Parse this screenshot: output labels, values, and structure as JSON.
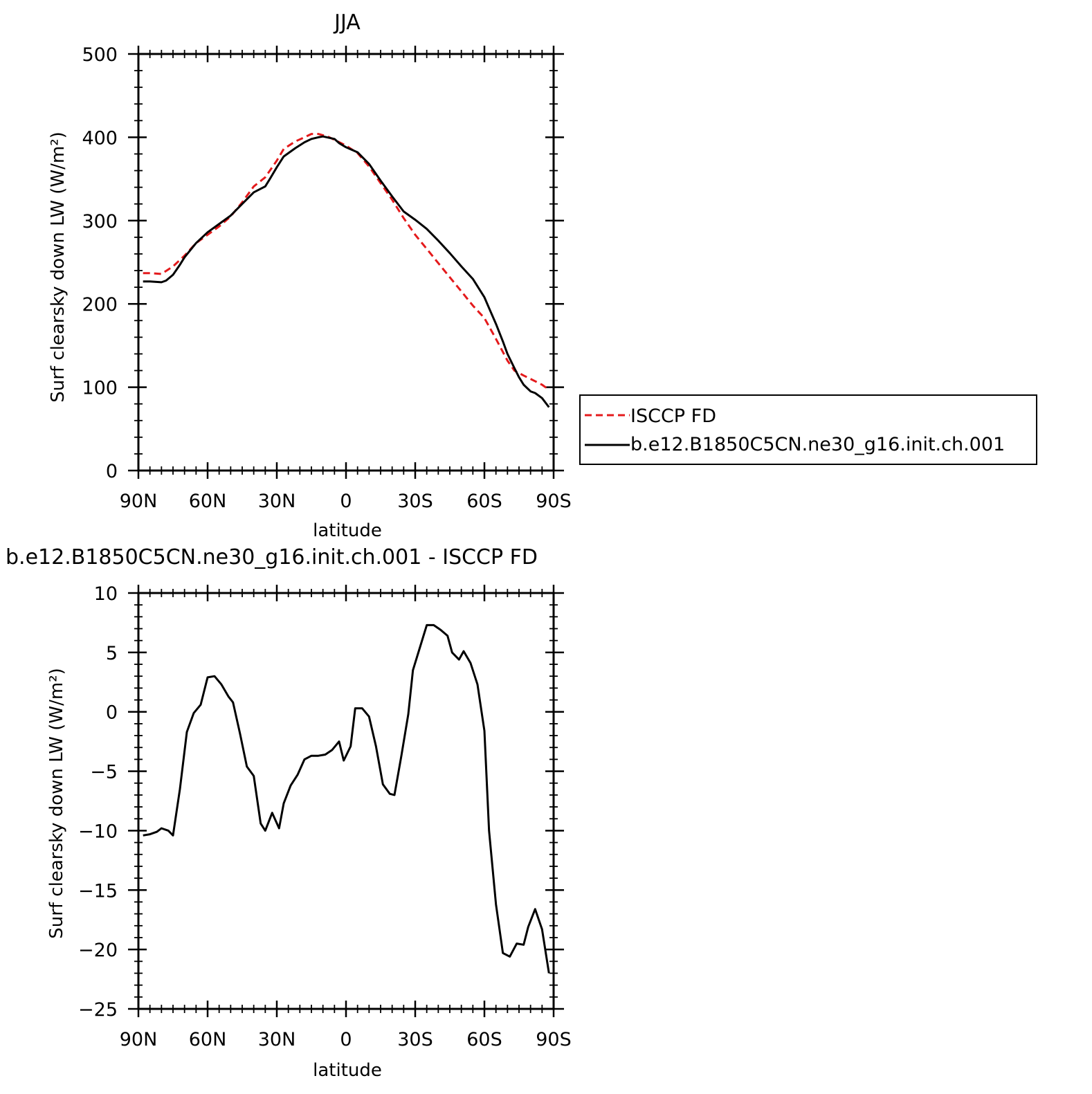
{
  "chart_data": [
    {
      "type": "line",
      "title": "JJA",
      "xlabel": "latitude",
      "ylabel": "Surf clearsky down LW (W/m²)",
      "xlim": [
        90,
        -90
      ],
      "ylim": [
        0,
        500
      ],
      "xticks": [
        90,
        60,
        30,
        0,
        -30,
        -60,
        -90
      ],
      "xtick_labels": [
        "90N",
        "60N",
        "30N",
        "0",
        "30S",
        "60S",
        "90S"
      ],
      "yticks": [
        0,
        100,
        200,
        300,
        400,
        500
      ],
      "ytick_labels": [
        "0",
        "100",
        "200",
        "300",
        "400",
        "500"
      ],
      "grid": false,
      "legend": {
        "placement": "right",
        "entries": [
          "ISCCP FD",
          "b.e12.B1850C5CN.ne30_g16.init.ch.001"
        ]
      },
      "series": [
        {
          "name": "ISCCP FD",
          "color": "#e41a1c",
          "dash": "dashed",
          "x": [
            88,
            85,
            80,
            75,
            70,
            65,
            60,
            55,
            50,
            45,
            40,
            35,
            30,
            27,
            22,
            18,
            15,
            12,
            8,
            5,
            0,
            -5,
            -10,
            -15,
            -20,
            -25,
            -30,
            -35,
            -40,
            -45,
            -50,
            -55,
            -60,
            -65,
            -70,
            -73,
            -77,
            -80,
            -85,
            -88
          ],
          "y": [
            237,
            237,
            236,
            245,
            258,
            273,
            283,
            293,
            305,
            322,
            341,
            352,
            372,
            386,
            395,
            400,
            404,
            404,
            401,
            397,
            390,
            381,
            365,
            345,
            325,
            303,
            283,
            266,
            249,
            232,
            215,
            198,
            183,
            158,
            132,
            120,
            114,
            110,
            103,
            97
          ]
        },
        {
          "name": "b.e12.B1850C5CN.ne30_g16.init.ch.001",
          "color": "#000000",
          "dash": "solid",
          "x": [
            88,
            85,
            80,
            78,
            75,
            72,
            70,
            65,
            60,
            55,
            50,
            45,
            40,
            35,
            33,
            30,
            27,
            22,
            18,
            15,
            12,
            10,
            5,
            3,
            0,
            -5,
            -10,
            -15,
            -20,
            -25,
            -30,
            -35,
            -40,
            -45,
            -50,
            -55,
            -60,
            -62,
            -65,
            -68,
            -70,
            -73,
            -75,
            -77,
            -80,
            -82,
            -85,
            -88
          ],
          "y": [
            227,
            227,
            226,
            228,
            235,
            247,
            256,
            273,
            286,
            296,
            306,
            320,
            334,
            341,
            350,
            364,
            377,
            387,
            394,
            398,
            400,
            401,
            398,
            393,
            388,
            382,
            368,
            348,
            329,
            311,
            301,
            290,
            276,
            261,
            245,
            230,
            208,
            195,
            176,
            155,
            140,
            123,
            112,
            103,
            95,
            93,
            87,
            76
          ]
        }
      ]
    },
    {
      "type": "line",
      "title": "b.e12.B1850C5CN.ne30_g16.init.ch.001 - ISCCP FD",
      "xlabel": "latitude",
      "ylabel": "Surf clearsky down LW (W/m²)",
      "xlim": [
        90,
        -90
      ],
      "ylim": [
        -25,
        10
      ],
      "xticks": [
        90,
        60,
        30,
        0,
        -30,
        -60,
        -90
      ],
      "xtick_labels": [
        "90N",
        "60N",
        "30N",
        "0",
        "30S",
        "60S",
        "90S"
      ],
      "yticks": [
        -25,
        -20,
        -15,
        -10,
        -5,
        0,
        5,
        10
      ],
      "ytick_labels": [
        "−25",
        "−20",
        "−15",
        "−10",
        "−5",
        "0",
        "5",
        "10"
      ],
      "grid": false,
      "series": [
        {
          "color": "#000000",
          "dash": "solid",
          "x": [
            88,
            85,
            82,
            80,
            77,
            75,
            72,
            69,
            66,
            63,
            60,
            57,
            54,
            51,
            49,
            46,
            43,
            40,
            37,
            35,
            32,
            29,
            27,
            24,
            21,
            18,
            15,
            12,
            9,
            6,
            3,
            1,
            -2,
            -4,
            -7,
            -10,
            -13,
            -16,
            -19,
            -21,
            -24,
            -27,
            -29,
            -32,
            -35,
            -38,
            -41,
            -44,
            -46,
            -49,
            -51,
            -54,
            -57,
            -60,
            -62,
            -65,
            -68,
            -71,
            -74,
            -77,
            -79,
            -82,
            -85,
            -88
          ],
          "y": [
            -10.4,
            -10.3,
            -10.1,
            -9.8,
            -10.0,
            -10.4,
            -6.5,
            -1.7,
            -0.1,
            0.6,
            2.9,
            3.0,
            2.3,
            1.3,
            0.8,
            -1.8,
            -4.6,
            -5.4,
            -9.4,
            -10.0,
            -8.5,
            -9.8,
            -7.7,
            -6.2,
            -5.3,
            -4.0,
            -3.7,
            -3.7,
            -3.6,
            -3.2,
            -2.5,
            -4.1,
            -2.9,
            0.3,
            0.3,
            -0.4,
            -2.9,
            -6.1,
            -6.9,
            -7.0,
            -3.7,
            -0.2,
            3.5,
            5.4,
            7.3,
            7.3,
            6.9,
            6.4,
            5.0,
            4.4,
            5.1,
            4.1,
            2.3,
            -1.6,
            -10.0,
            -16.2,
            -20.3,
            -20.6,
            -19.5,
            -19.6,
            -18.1,
            -16.6,
            -18.3,
            -22.0
          ]
        }
      ]
    }
  ]
}
